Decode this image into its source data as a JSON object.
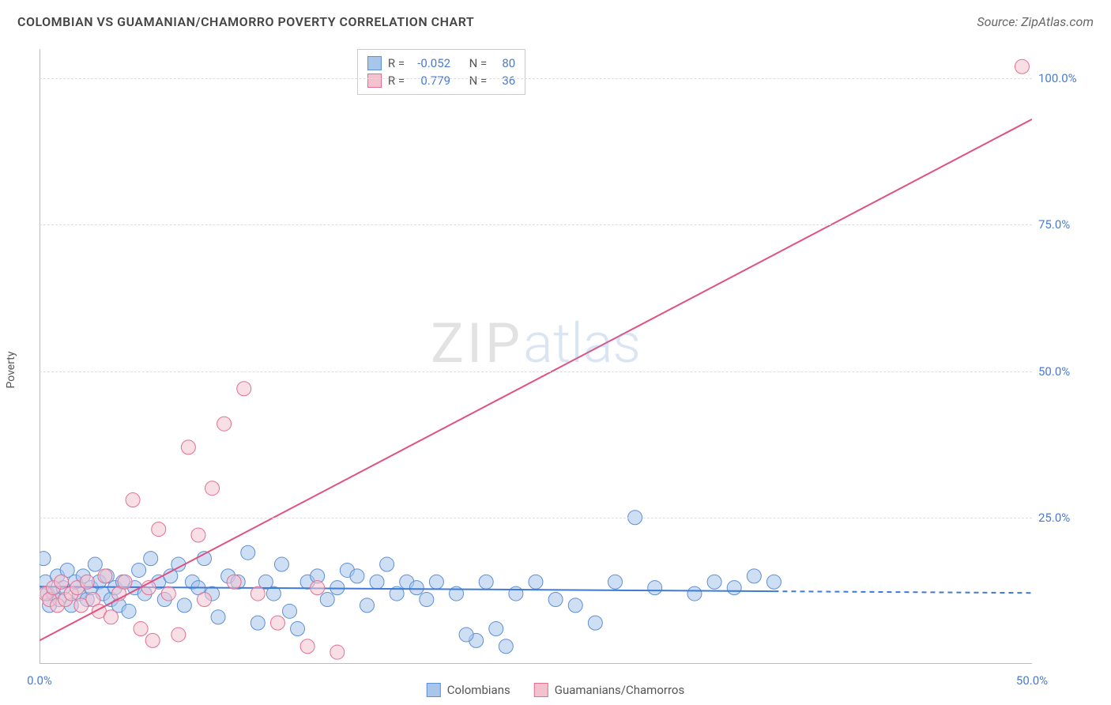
{
  "header": {
    "title": "COLOMBIAN VS GUAMANIAN/CHAMORRO POVERTY CORRELATION CHART",
    "source_label": "Source: ZipAtlas.com",
    "title_fontsize": 16,
    "title_color": "#444444",
    "source_color": "#666666"
  },
  "watermark": {
    "part1": "ZIP",
    "part2": "atlas"
  },
  "chart": {
    "type": "scatter",
    "ylabel": "Poverty",
    "xlim": [
      0,
      50
    ],
    "ylim": [
      0,
      105
    ],
    "x_ticks": [
      {
        "v": 0,
        "label": "0.0%"
      },
      {
        "v": 50,
        "label": "50.0%"
      }
    ],
    "y_ticks": [
      {
        "v": 25,
        "label": "25.0%"
      },
      {
        "v": 50,
        "label": "50.0%"
      },
      {
        "v": 75,
        "label": "75.0%"
      },
      {
        "v": 100,
        "label": "100.0%"
      }
    ],
    "grid_color": "#dddddd",
    "axis_color": "#bbbbbb",
    "background_color": "#ffffff",
    "tick_font_color": "#4a7bd0",
    "series": [
      {
        "name": "Colombians",
        "fill": "#a8c5ea",
        "stroke": "#5d8fd6",
        "marker_radius": 9,
        "fill_opacity": 0.55,
        "regression": {
          "x1": 0,
          "y1": 13.2,
          "x2": 37,
          "y2": 12.4,
          "dashed_to_x": 50,
          "color": "#3f7ad4",
          "width": 2
        },
        "points": [
          [
            0.2,
            18
          ],
          [
            0.3,
            14
          ],
          [
            0.4,
            12
          ],
          [
            0.5,
            10
          ],
          [
            0.7,
            12
          ],
          [
            0.9,
            15
          ],
          [
            1.0,
            11
          ],
          [
            1.2,
            13
          ],
          [
            1.4,
            16
          ],
          [
            1.6,
            10
          ],
          [
            1.8,
            14
          ],
          [
            2.0,
            12
          ],
          [
            2.2,
            15
          ],
          [
            2.4,
            11
          ],
          [
            2.6,
            13
          ],
          [
            2.8,
            17
          ],
          [
            3.0,
            14
          ],
          [
            3.2,
            12
          ],
          [
            3.4,
            15
          ],
          [
            3.6,
            11
          ],
          [
            3.8,
            13
          ],
          [
            4.0,
            10
          ],
          [
            4.2,
            14
          ],
          [
            4.5,
            9
          ],
          [
            4.8,
            13
          ],
          [
            5.0,
            16
          ],
          [
            5.3,
            12
          ],
          [
            5.6,
            18
          ],
          [
            6.0,
            14
          ],
          [
            6.3,
            11
          ],
          [
            6.6,
            15
          ],
          [
            7.0,
            17
          ],
          [
            7.3,
            10
          ],
          [
            7.7,
            14
          ],
          [
            8.0,
            13
          ],
          [
            8.3,
            18
          ],
          [
            8.7,
            12
          ],
          [
            9.0,
            8
          ],
          [
            9.5,
            15
          ],
          [
            10.0,
            14
          ],
          [
            10.5,
            19
          ],
          [
            11.0,
            7
          ],
          [
            11.4,
            14
          ],
          [
            11.8,
            12
          ],
          [
            12.2,
            17
          ],
          [
            12.6,
            9
          ],
          [
            13.0,
            6
          ],
          [
            13.5,
            14
          ],
          [
            14.0,
            15
          ],
          [
            14.5,
            11
          ],
          [
            15.0,
            13
          ],
          [
            15.5,
            16
          ],
          [
            16.0,
            15
          ],
          [
            16.5,
            10
          ],
          [
            17.0,
            14
          ],
          [
            17.5,
            17
          ],
          [
            18.0,
            12
          ],
          [
            18.5,
            14
          ],
          [
            19.0,
            13
          ],
          [
            19.5,
            11
          ],
          [
            20.0,
            14
          ],
          [
            21.0,
            12
          ],
          [
            22.0,
            4
          ],
          [
            22.5,
            14
          ],
          [
            23.0,
            6
          ],
          [
            24.0,
            12
          ],
          [
            25.0,
            14
          ],
          [
            26.0,
            11
          ],
          [
            27.0,
            10
          ],
          [
            28.0,
            7
          ],
          [
            29.0,
            14
          ],
          [
            30.0,
            25
          ],
          [
            31.0,
            13
          ],
          [
            33.0,
            12
          ],
          [
            34.0,
            14
          ],
          [
            35.0,
            13
          ],
          [
            36.0,
            15
          ],
          [
            37.0,
            14
          ],
          [
            21.5,
            5
          ],
          [
            23.5,
            3
          ]
        ]
      },
      {
        "name": "Guamanians/Chamorros",
        "fill": "#f3c2cf",
        "stroke": "#e46f91",
        "marker_radius": 9,
        "fill_opacity": 0.55,
        "regression": {
          "x1": 0,
          "y1": 4,
          "x2": 50,
          "y2": 93,
          "color": "#e05181",
          "width": 2
        },
        "points": [
          [
            0.3,
            12
          ],
          [
            0.5,
            11
          ],
          [
            0.7,
            13
          ],
          [
            0.9,
            10
          ],
          [
            1.1,
            14
          ],
          [
            1.3,
            11
          ],
          [
            1.6,
            12
          ],
          [
            1.9,
            13
          ],
          [
            2.1,
            10
          ],
          [
            2.4,
            14
          ],
          [
            2.7,
            11
          ],
          [
            3.0,
            9
          ],
          [
            3.3,
            15
          ],
          [
            3.6,
            8
          ],
          [
            4.0,
            12
          ],
          [
            4.3,
            14
          ],
          [
            4.7,
            28
          ],
          [
            5.1,
            6
          ],
          [
            5.5,
            13
          ],
          [
            5.7,
            4
          ],
          [
            6.0,
            23
          ],
          [
            6.5,
            12
          ],
          [
            7.0,
            5
          ],
          [
            7.5,
            37
          ],
          [
            8.0,
            22
          ],
          [
            8.3,
            11
          ],
          [
            8.7,
            30
          ],
          [
            9.3,
            41
          ],
          [
            9.8,
            14
          ],
          [
            10.3,
            47
          ],
          [
            11.0,
            12
          ],
          [
            12.0,
            7
          ],
          [
            13.5,
            3
          ],
          [
            14.0,
            13
          ],
          [
            15.0,
            2
          ],
          [
            49.5,
            102
          ]
        ]
      }
    ]
  },
  "correlation_box": {
    "rows": [
      {
        "swatch_fill": "#a8c5ea",
        "swatch_stroke": "#5d8fd6",
        "R": "-0.052",
        "N": "80"
      },
      {
        "swatch_fill": "#f3c2cf",
        "swatch_stroke": "#e46f91",
        "R": "0.779",
        "N": "36"
      }
    ],
    "label_R": "R =",
    "label_N": "N ="
  },
  "legend": {
    "items": [
      {
        "swatch_fill": "#a8c5ea",
        "swatch_stroke": "#5d8fd6",
        "label": "Colombians"
      },
      {
        "swatch_fill": "#f3c2cf",
        "swatch_stroke": "#e46f91",
        "label": "Guamanians/Chamorros"
      }
    ]
  }
}
